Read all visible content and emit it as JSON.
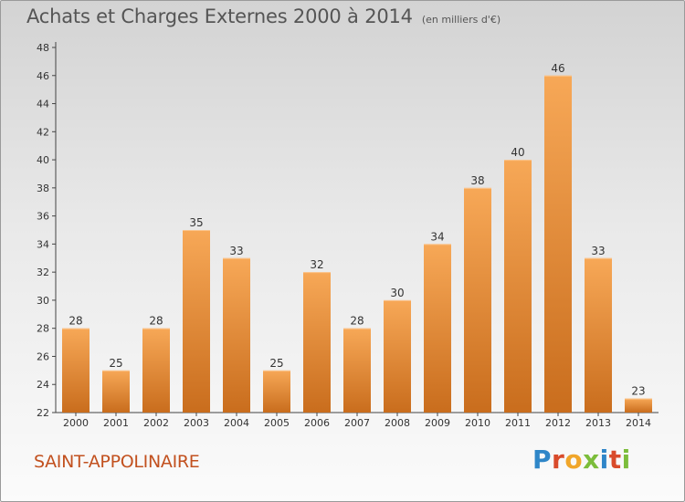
{
  "header": {
    "title": "Achats et Charges Externes 2000 à 2014",
    "unit": "(en milliers d'€)"
  },
  "footer": {
    "place": "SAINT-APPOLINAIRE",
    "logo_text": "Proxiti"
  },
  "colors": {
    "bar_top": "#f7a857",
    "bar_bottom": "#c96d1d",
    "place_text": "#c2511f",
    "logo_letters": [
      "#2f86c8",
      "#d94b2b",
      "#f0a62a",
      "#7cbd3b",
      "#2f86c8",
      "#d94b2b",
      "#7cbd3b"
    ]
  },
  "chart_data": {
    "type": "bar",
    "categories": [
      "2000",
      "2001",
      "2002",
      "2003",
      "2004",
      "2005",
      "2006",
      "2007",
      "2008",
      "2009",
      "2010",
      "2011",
      "2012",
      "2013",
      "2014"
    ],
    "values": [
      28,
      25,
      28,
      35,
      33,
      25,
      32,
      28,
      30,
      34,
      38,
      40,
      46,
      33,
      23
    ],
    "ylim": [
      22,
      48
    ],
    "yticks": [
      22,
      24,
      26,
      28,
      30,
      32,
      34,
      36,
      38,
      40,
      42,
      44,
      46,
      48
    ],
    "grid": false,
    "data_labels": true
  }
}
